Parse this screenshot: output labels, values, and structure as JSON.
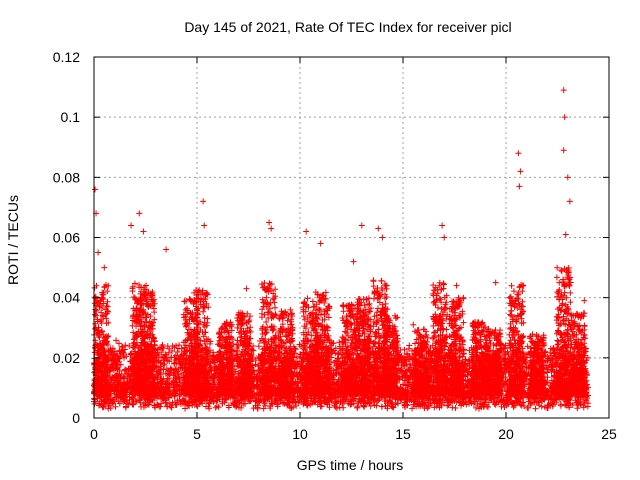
{
  "chart_data": {
    "type": "scatter",
    "title": "Day 145 of 2021, Rate Of TEC Index for receiver picl",
    "xlabel": "GPS time / hours",
    "ylabel": "ROTI / TECUs",
    "xlim": [
      0,
      25
    ],
    "ylim": [
      0,
      0.12
    ],
    "x_ticks": [
      0,
      5,
      10,
      15,
      20,
      25
    ],
    "x_tick_labels": [
      "0",
      "5",
      "10",
      "15",
      "20",
      "25"
    ],
    "y_ticks": [
      0,
      0.02,
      0.04,
      0.06,
      0.08,
      0.1,
      0.12
    ],
    "y_tick_labels": [
      "0",
      "0.02",
      "0.04",
      "0.06",
      "0.08",
      "0.1",
      "0.12"
    ],
    "grid": true,
    "marker": "+",
    "color": "#ff0000",
    "series": [
      {
        "name": "ROTI",
        "x_range": [
          0,
          24
        ],
        "baseline": [
          0.003,
          0.02
        ],
        "spikes": [
          {
            "x": 0.05,
            "y": 0.076
          },
          {
            "x": 0.1,
            "y": 0.068
          },
          {
            "x": 0.2,
            "y": 0.055
          },
          {
            "x": 0.5,
            "y": 0.05
          },
          {
            "x": 1.8,
            "y": 0.064
          },
          {
            "x": 2.2,
            "y": 0.068
          },
          {
            "x": 2.4,
            "y": 0.062
          },
          {
            "x": 3.5,
            "y": 0.056
          },
          {
            "x": 5.3,
            "y": 0.072
          },
          {
            "x": 5.35,
            "y": 0.064
          },
          {
            "x": 7.4,
            "y": 0.043
          },
          {
            "x": 8.5,
            "y": 0.065
          },
          {
            "x": 8.6,
            "y": 0.063
          },
          {
            "x": 10.3,
            "y": 0.062
          },
          {
            "x": 11.0,
            "y": 0.058
          },
          {
            "x": 12.6,
            "y": 0.052
          },
          {
            "x": 13.0,
            "y": 0.064
          },
          {
            "x": 13.8,
            "y": 0.063
          },
          {
            "x": 14.0,
            "y": 0.06
          },
          {
            "x": 15.5,
            "y": 0.031
          },
          {
            "x": 16.9,
            "y": 0.064
          },
          {
            "x": 17.0,
            "y": 0.06
          },
          {
            "x": 17.6,
            "y": 0.044
          },
          {
            "x": 19.5,
            "y": 0.045
          },
          {
            "x": 20.6,
            "y": 0.088
          },
          {
            "x": 20.7,
            "y": 0.082
          },
          {
            "x": 20.65,
            "y": 0.077
          },
          {
            "x": 22.8,
            "y": 0.109
          },
          {
            "x": 22.85,
            "y": 0.1
          },
          {
            "x": 22.8,
            "y": 0.089
          },
          {
            "x": 23.0,
            "y": 0.08
          },
          {
            "x": 23.1,
            "y": 0.072
          },
          {
            "x": 22.9,
            "y": 0.061
          },
          {
            "x": 23.8,
            "y": 0.039
          }
        ],
        "activity_bursts": [
          {
            "x": 0.35,
            "peak": 0.045
          },
          {
            "x": 2.2,
            "peak": 0.045
          },
          {
            "x": 2.6,
            "peak": 0.042
          },
          {
            "x": 4.7,
            "peak": 0.04
          },
          {
            "x": 5.2,
            "peak": 0.043
          },
          {
            "x": 6.4,
            "peak": 0.032
          },
          {
            "x": 7.3,
            "peak": 0.035
          },
          {
            "x": 8.5,
            "peak": 0.045
          },
          {
            "x": 9.3,
            "peak": 0.036
          },
          {
            "x": 10.5,
            "peak": 0.04
          },
          {
            "x": 11.1,
            "peak": 0.042
          },
          {
            "x": 12.4,
            "peak": 0.038
          },
          {
            "x": 13.1,
            "peak": 0.04
          },
          {
            "x": 13.9,
            "peak": 0.046
          },
          {
            "x": 14.4,
            "peak": 0.034
          },
          {
            "x": 15.9,
            "peak": 0.03
          },
          {
            "x": 16.8,
            "peak": 0.045
          },
          {
            "x": 17.6,
            "peak": 0.04
          },
          {
            "x": 18.7,
            "peak": 0.032
          },
          {
            "x": 19.4,
            "peak": 0.03
          },
          {
            "x": 20.5,
            "peak": 0.045
          },
          {
            "x": 21.5,
            "peak": 0.028
          },
          {
            "x": 22.8,
            "peak": 0.05
          },
          {
            "x": 23.5,
            "peak": 0.035
          }
        ]
      }
    ]
  }
}
